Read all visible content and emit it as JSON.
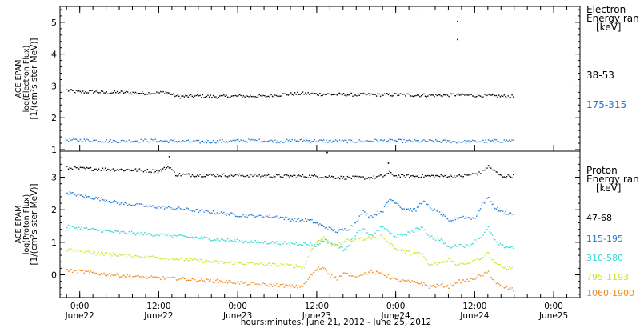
{
  "xaxis": {
    "ticks": [
      {
        "hour": 0,
        "l1": "0:00",
        "l2": "June22"
      },
      {
        "hour": 12,
        "l1": "12:00",
        "l2": "June22"
      },
      {
        "hour": 24,
        "l1": "0:00",
        "l2": "June23"
      },
      {
        "hour": 36,
        "l1": "12:00",
        "l2": "June23"
      },
      {
        "hour": 48,
        "l1": "0:00",
        "l2": "June24"
      },
      {
        "hour": 60,
        "l1": "12:00",
        "l2": "June24"
      },
      {
        "hour": 72,
        "l1": "0:00",
        "l2": "June25"
      }
    ],
    "label": "hours:minutes, June 21, 2012 - June 25, 2012"
  },
  "chart_data": [
    {
      "type": "scatter",
      "panel": "electron",
      "ylabel": [
        "ACE EPAM",
        "log(Electron Flux)",
        "[1/(cm²s ster MeV)]"
      ],
      "ylim": [
        0.95,
        5.5
      ],
      "yticks": [
        1,
        2,
        3,
        4,
        5
      ],
      "x_unit": "hours since June 22 00:00",
      "xlim": [
        -3,
        76
      ],
      "legend_title": [
        "Electron",
        "Energy ran",
        "[keV]"
      ],
      "series": [
        {
          "name": "38-53",
          "color": "#000000",
          "points": [
            [
              -2,
              2.88
            ],
            [
              0,
              2.82
            ],
            [
              2,
              2.84
            ],
            [
              4,
              2.8
            ],
            [
              6,
              2.82
            ],
            [
              8,
              2.8
            ],
            [
              10,
              2.79
            ],
            [
              12,
              2.8
            ],
            [
              13,
              2.83
            ],
            [
              14,
              2.75
            ],
            [
              15,
              2.68
            ],
            [
              18,
              2.7
            ],
            [
              21,
              2.68
            ],
            [
              24,
              2.7
            ],
            [
              27,
              2.7
            ],
            [
              28,
              2.68
            ],
            [
              31,
              2.75
            ],
            [
              34,
              2.78
            ],
            [
              36,
              2.76
            ],
            [
              39,
              2.75
            ],
            [
              42,
              2.74
            ],
            [
              45,
              2.74
            ],
            [
              48,
              2.74
            ],
            [
              51,
              2.73
            ],
            [
              54,
              2.72
            ],
            [
              57,
              2.74
            ],
            [
              60,
              2.72
            ],
            [
              63,
              2.7
            ],
            [
              66,
              2.68
            ]
          ]
        },
        {
          "name": "175-315",
          "color": "#1f78d8",
          "points": [
            [
              -2,
              1.32
            ],
            [
              2,
              1.3
            ],
            [
              6,
              1.28
            ],
            [
              10,
              1.3
            ],
            [
              14,
              1.28
            ],
            [
              18,
              1.26
            ],
            [
              22,
              1.28
            ],
            [
              26,
              1.3
            ],
            [
              30,
              1.28
            ],
            [
              34,
              1.3
            ],
            [
              38,
              1.28
            ],
            [
              42,
              1.28
            ],
            [
              46,
              1.3
            ],
            [
              50,
              1.28
            ],
            [
              54,
              1.28
            ],
            [
              58,
              1.26
            ],
            [
              62,
              1.28
            ],
            [
              66,
              1.3
            ]
          ]
        }
      ],
      "outliers": [
        [
          57.3,
          5.05
        ],
        [
          57.3,
          4.48
        ]
      ]
    },
    {
      "type": "scatter",
      "panel": "proton",
      "ylabel": [
        "ACE EPAM",
        "log(Proton Flux)",
        "[1/(cm²s ster MeV)]"
      ],
      "ylim": [
        -0.7,
        3.8
      ],
      "yticks": [
        0,
        1,
        2,
        3
      ],
      "x_unit": "hours since June 22 00:00",
      "xlim": [
        -3,
        76
      ],
      "legend_title": [
        "Proton",
        "Energy ran",
        "[keV]"
      ],
      "series": [
        {
          "name": "47-68",
          "color": "#000000",
          "points": [
            [
              -2,
              3.3
            ],
            [
              0,
              3.28
            ],
            [
              4,
              3.26
            ],
            [
              8,
              3.24
            ],
            [
              12,
              3.2
            ],
            [
              13.5,
              3.35
            ],
            [
              14.5,
              3.1
            ],
            [
              18,
              3.08
            ],
            [
              22,
              3.08
            ],
            [
              26,
              3.07
            ],
            [
              30,
              3.05
            ],
            [
              34,
              3.05
            ],
            [
              38,
              3.03
            ],
            [
              40,
              3.0
            ],
            [
              44,
              3.0
            ],
            [
              46,
              3.05
            ],
            [
              47,
              3.15
            ],
            [
              48,
              3.05
            ],
            [
              50,
              3.05
            ],
            [
              54,
              3.05
            ],
            [
              58,
              3.05
            ],
            [
              61,
              3.15
            ],
            [
              62,
              3.35
            ],
            [
              63,
              3.2
            ],
            [
              64,
              3.05
            ],
            [
              66,
              3.05
            ]
          ]
        },
        {
          "name": "115-195",
          "color": "#1f78d8",
          "points": [
            [
              -2,
              2.55
            ],
            [
              0,
              2.45
            ],
            [
              3,
              2.35
            ],
            [
              6,
              2.22
            ],
            [
              9,
              2.15
            ],
            [
              12,
              2.1
            ],
            [
              15,
              2.05
            ],
            [
              18,
              1.98
            ],
            [
              21,
              1.92
            ],
            [
              24,
              1.85
            ],
            [
              27,
              1.82
            ],
            [
              30,
              1.8
            ],
            [
              32,
              1.72
            ],
            [
              35,
              1.68
            ],
            [
              37,
              1.5
            ],
            [
              39,
              1.35
            ],
            [
              41,
              1.45
            ],
            [
              42,
              1.7
            ],
            [
              43,
              1.95
            ],
            [
              44,
              1.8
            ],
            [
              46,
              2.0
            ],
            [
              47,
              2.35
            ],
            [
              48,
              2.25
            ],
            [
              49,
              2.05
            ],
            [
              51,
              2.0
            ],
            [
              52,
              2.3
            ],
            [
              53,
              2.1
            ],
            [
              55,
              1.85
            ],
            [
              56,
              1.65
            ],
            [
              57,
              1.75
            ],
            [
              58,
              1.8
            ],
            [
              60,
              1.75
            ],
            [
              61,
              2.15
            ],
            [
              62,
              2.4
            ],
            [
              63,
              2.1
            ],
            [
              64,
              1.95
            ],
            [
              66,
              1.88
            ]
          ]
        },
        {
          "name": "310-580",
          "color": "#33d6d6",
          "points": [
            [
              -2,
              1.5
            ],
            [
              0,
              1.45
            ],
            [
              3,
              1.38
            ],
            [
              6,
              1.32
            ],
            [
              9,
              1.28
            ],
            [
              12,
              1.25
            ],
            [
              15,
              1.2
            ],
            [
              18,
              1.15
            ],
            [
              21,
              1.1
            ],
            [
              24,
              1.05
            ],
            [
              27,
              1.02
            ],
            [
              30,
              1.0
            ],
            [
              33,
              0.98
            ],
            [
              35,
              0.95
            ],
            [
              36,
              0.92
            ],
            [
              37,
              1.1
            ],
            [
              38,
              1.0
            ],
            [
              39,
              0.9
            ],
            [
              40,
              0.8
            ],
            [
              41,
              1.0
            ],
            [
              42,
              1.3
            ],
            [
              43,
              1.4
            ],
            [
              44,
              1.2
            ],
            [
              46,
              1.5
            ],
            [
              47,
              1.3
            ],
            [
              48,
              1.2
            ],
            [
              50,
              1.3
            ],
            [
              52,
              1.5
            ],
            [
              53,
              1.2
            ],
            [
              55,
              1.05
            ],
            [
              56,
              0.85
            ],
            [
              57,
              0.95
            ],
            [
              59,
              0.9
            ],
            [
              61,
              1.2
            ],
            [
              62,
              1.45
            ],
            [
              63,
              1.05
            ],
            [
              64,
              0.9
            ],
            [
              66,
              0.85
            ]
          ]
        },
        {
          "name": "795-1193",
          "color": "#c4e81e",
          "points": [
            [
              -2,
              0.78
            ],
            [
              0,
              0.74
            ],
            [
              3,
              0.68
            ],
            [
              6,
              0.62
            ],
            [
              9,
              0.58
            ],
            [
              12,
              0.55
            ],
            [
              15,
              0.5
            ],
            [
              18,
              0.45
            ],
            [
              21,
              0.4
            ],
            [
              24,
              0.38
            ],
            [
              27,
              0.35
            ],
            [
              30,
              0.32
            ],
            [
              33,
              0.28
            ],
            [
              34,
              0.25
            ],
            [
              35,
              0.75
            ],
            [
              36,
              1.05
            ],
            [
              37,
              1.15
            ],
            [
              38,
              1.0
            ],
            [
              39,
              0.9
            ],
            [
              40,
              1.05
            ],
            [
              42,
              1.1
            ],
            [
              44,
              1.15
            ],
            [
              46,
              1.2
            ],
            [
              48,
              0.8
            ],
            [
              50,
              0.7
            ],
            [
              52,
              0.65
            ],
            [
              53,
              0.3
            ],
            [
              55,
              0.4
            ],
            [
              56,
              0.5
            ],
            [
              57,
              0.35
            ],
            [
              59,
              0.4
            ],
            [
              61,
              0.55
            ],
            [
              62,
              0.7
            ],
            [
              63,
              0.4
            ],
            [
              64,
              0.25
            ],
            [
              66,
              0.2
            ]
          ]
        },
        {
          "name": "1060-1900",
          "color": "#f08a1c",
          "points": [
            [
              -2,
              0.15
            ],
            [
              0,
              0.12
            ],
            [
              3,
              0.05
            ],
            [
              6,
              0.0
            ],
            [
              9,
              -0.05
            ],
            [
              12,
              -0.08
            ],
            [
              15,
              -0.1
            ],
            [
              18,
              -0.15
            ],
            [
              21,
              -0.18
            ],
            [
              24,
              -0.22
            ],
            [
              27,
              -0.28
            ],
            [
              30,
              -0.3
            ],
            [
              33,
              -0.35
            ],
            [
              34,
              -0.3
            ],
            [
              35,
              0.0
            ],
            [
              36,
              0.2
            ],
            [
              37,
              0.25
            ],
            [
              38,
              0.0
            ],
            [
              39,
              -0.1
            ],
            [
              40,
              0.05
            ],
            [
              42,
              0.0
            ],
            [
              44,
              0.1
            ],
            [
              46,
              0.05
            ],
            [
              48,
              -0.15
            ],
            [
              50,
              -0.2
            ],
            [
              52,
              -0.25
            ],
            [
              53,
              -0.35
            ],
            [
              55,
              -0.3
            ],
            [
              56,
              -0.35
            ],
            [
              57,
              -0.2
            ],
            [
              59,
              -0.15
            ],
            [
              61,
              0.0
            ],
            [
              62,
              0.1
            ],
            [
              63,
              -0.2
            ],
            [
              64,
              -0.35
            ],
            [
              66,
              -0.45
            ]
          ]
        }
      ],
      "outliers": [
        [
          13.5,
          3.65
        ],
        [
          37.5,
          3.78
        ],
        [
          46.8,
          3.45
        ]
      ]
    }
  ]
}
